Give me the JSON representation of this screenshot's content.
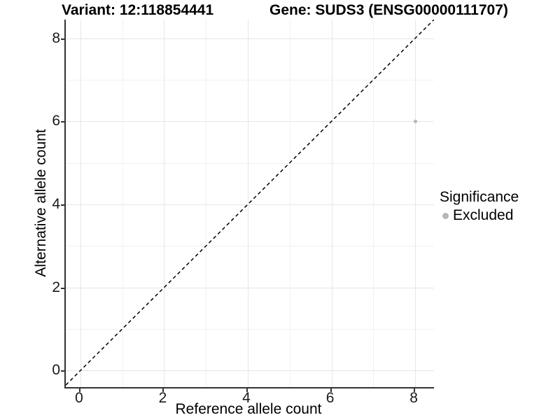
{
  "titles": {
    "left": "Variant: 12:118854441",
    "right": "Gene: SUDS3 (ENSG00000111707)"
  },
  "legend": {
    "title": "Significance",
    "items": [
      {
        "label": "Excluded",
        "color": "#b7b7b7"
      }
    ]
  },
  "colors": {
    "background": "#ffffff",
    "grid_major": "#e6e6e6",
    "grid_minor": "#f1f1f1",
    "axis_line": "#333333",
    "identity_line": "#000000",
    "point": "#b7b7b7"
  },
  "chart_data": {
    "type": "scatter",
    "title": "Variant: 12:118854441  /  Gene: SUDS3 (ENSG00000111707)",
    "xlabel": "Reference allele count",
    "ylabel": "Alternative allele count",
    "xlim": [
      -0.35,
      8.45
    ],
    "ylim": [
      -0.4,
      8.45
    ],
    "xticks": [
      0,
      2,
      4,
      6,
      8
    ],
    "yticks": [
      0,
      2,
      4,
      6,
      8
    ],
    "grid": true,
    "legend_position": "right",
    "reference_line": {
      "type": "identity",
      "slope": 1,
      "intercept": 0,
      "linetype": "dashed",
      "color": "#000000"
    },
    "series": [
      {
        "name": "Excluded",
        "color": "#b7b7b7",
        "point_radius_px": 2.5,
        "points": [
          {
            "x": 8,
            "y": 6
          }
        ]
      }
    ]
  }
}
